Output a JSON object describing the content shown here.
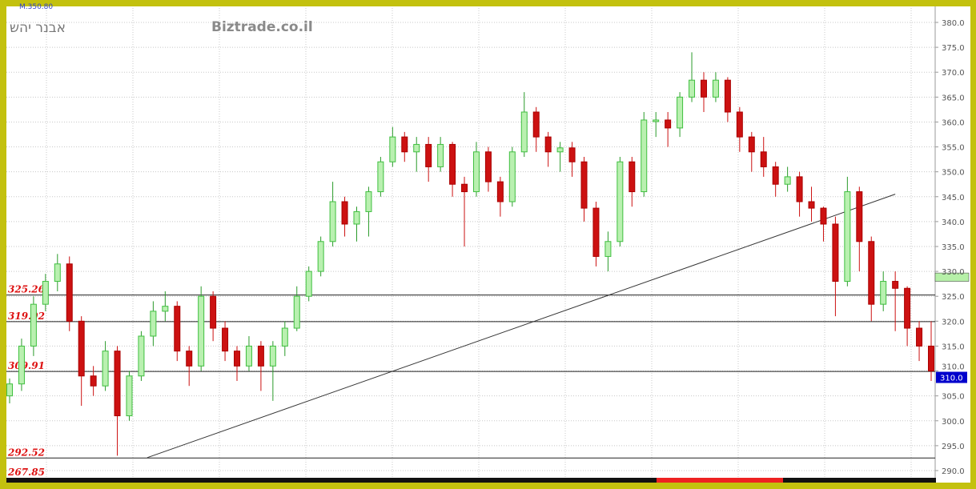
{
  "header": {
    "last_value_label": "M.350.80",
    "author": "אבנר יהש",
    "watermark": "Biztrade.co.il"
  },
  "colors": {
    "up": "#3fbf3f",
    "up_fill": "#b9f0b0",
    "down": "#cc1111",
    "frame": "#c3c10e",
    "level_label": "#dd1111",
    "current_price_bg": "#0000cc",
    "highlight_band": "#b6f0a8"
  },
  "chart_data": {
    "type": "candlestick",
    "ylim": [
      288,
      382
    ],
    "y_ticks": [
      "290.0",
      "295.0",
      "300.0",
      "305.0",
      "310.0",
      "315.0",
      "320.0",
      "325.0",
      "330.0",
      "335.0",
      "340.0",
      "345.0",
      "350.0",
      "355.0",
      "360.0",
      "365.0",
      "370.0",
      "375.0",
      "380.0"
    ],
    "grid": true,
    "current_price": "310.0",
    "highlight_band": [
      328,
      330
    ],
    "levels": [
      {
        "label": "325.26",
        "value": 325.26
      },
      {
        "label": "319.92",
        "value": 319.92
      },
      {
        "label": "309.91",
        "value": 309.91
      },
      {
        "label": "292.52",
        "value": 292.52
      }
    ],
    "extra_label": "267.85",
    "trendline": {
      "start": {
        "index": 11.5,
        "price": 292.6
      },
      "end": {
        "index": 74,
        "price": 345.5
      }
    },
    "ohlc": [
      [
        305,
        308.5,
        303.5,
        307.4
      ],
      [
        307.4,
        316.5,
        306,
        315
      ],
      [
        315,
        325,
        313,
        323.4
      ],
      [
        323.4,
        329.5,
        322,
        328
      ],
      [
        328,
        333.5,
        326,
        331.5
      ],
      [
        331.5,
        333,
        318,
        320
      ],
      [
        320,
        321,
        303,
        309
      ],
      [
        309,
        311,
        305,
        307
      ],
      [
        307,
        316,
        306,
        314
      ],
      [
        314,
        315,
        293,
        301
      ],
      [
        301,
        310,
        300,
        309
      ],
      [
        309,
        318,
        308,
        317
      ],
      [
        317,
        324,
        315,
        322
      ],
      [
        322,
        326,
        320,
        323
      ],
      [
        323,
        324,
        312,
        314
      ],
      [
        314,
        315,
        307,
        311
      ],
      [
        311,
        327,
        310,
        325
      ],
      [
        325,
        326,
        316,
        318.6
      ],
      [
        318.6,
        320,
        312,
        314
      ],
      [
        314,
        315,
        308,
        311
      ],
      [
        311,
        317,
        310,
        315
      ],
      [
        315,
        316,
        306,
        311
      ],
      [
        311,
        316,
        304,
        315
      ],
      [
        315,
        320,
        313,
        318.6
      ],
      [
        318.6,
        327,
        318,
        325
      ],
      [
        325,
        331,
        324,
        330
      ],
      [
        330,
        337,
        329,
        336
      ],
      [
        336,
        348,
        335,
        344
      ],
      [
        344,
        345,
        337,
        339.5
      ],
      [
        339.5,
        343,
        336,
        342
      ],
      [
        342,
        347,
        337,
        346
      ],
      [
        346,
        353,
        345,
        352
      ],
      [
        352,
        359,
        351,
        357
      ],
      [
        357,
        358,
        352,
        354
      ],
      [
        354,
        357,
        350,
        355.5
      ],
      [
        355.5,
        357,
        348,
        351
      ],
      [
        351,
        357,
        350,
        355.5
      ],
      [
        355.5,
        356,
        345,
        347.5
      ],
      [
        347.5,
        349,
        335,
        346
      ],
      [
        346,
        356,
        345,
        354
      ],
      [
        354,
        355,
        346,
        348
      ],
      [
        348,
        349,
        341,
        344
      ],
      [
        344,
        355,
        343,
        354
      ],
      [
        354,
        366,
        353,
        362
      ],
      [
        362,
        363,
        354,
        357
      ],
      [
        357,
        358,
        351,
        354
      ],
      [
        354,
        356,
        350,
        354.8
      ],
      [
        354.8,
        356,
        349,
        352
      ],
      [
        352,
        353,
        340,
        342.7
      ],
      [
        342.7,
        344,
        331,
        333
      ],
      [
        333,
        338,
        330,
        336
      ],
      [
        336,
        353,
        335,
        352
      ],
      [
        352,
        353,
        343,
        346
      ],
      [
        346,
        362,
        345,
        360.4
      ],
      [
        360.4,
        362,
        357,
        360.4
      ],
      [
        360.4,
        362,
        355,
        358.8
      ],
      [
        358.8,
        366,
        357,
        365
      ],
      [
        365,
        374,
        364,
        368.4
      ],
      [
        368.4,
        370,
        362,
        365
      ],
      [
        365,
        370,
        364,
        368.4
      ],
      [
        368.4,
        369,
        360,
        362
      ],
      [
        362,
        363,
        354,
        357
      ],
      [
        357,
        358,
        350,
        354
      ],
      [
        354,
        357,
        349,
        351
      ],
      [
        351,
        352,
        345,
        347.5
      ],
      [
        347.5,
        351,
        346,
        349
      ],
      [
        349,
        350,
        341,
        344
      ],
      [
        344,
        347,
        340,
        342.7
      ],
      [
        342.7,
        343,
        336,
        339.5
      ],
      [
        339.5,
        341,
        321,
        328
      ],
      [
        328,
        349,
        327,
        346
      ],
      [
        346,
        347,
        330,
        336
      ],
      [
        336,
        337,
        320,
        323.4
      ],
      [
        323.4,
        330,
        322,
        328
      ],
      [
        328,
        330,
        318,
        326.6
      ],
      [
        326.6,
        327,
        315,
        318.6
      ],
      [
        318.6,
        320,
        312,
        315
      ],
      [
        315,
        320,
        308,
        310
      ]
    ]
  }
}
